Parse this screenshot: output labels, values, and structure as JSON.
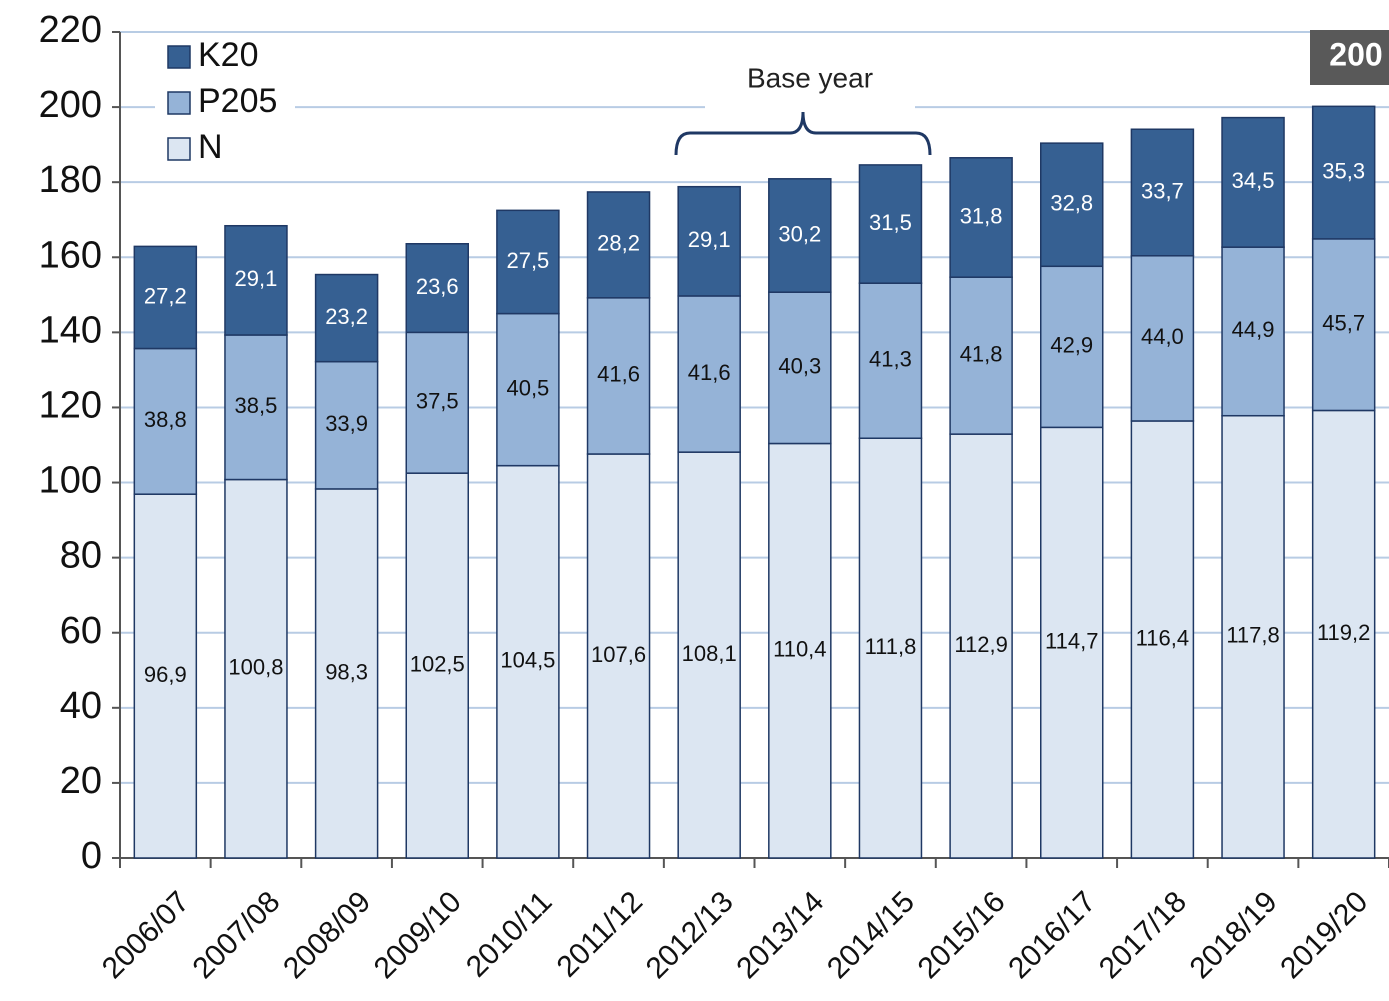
{
  "chart_data": {
    "type": "stacked_bar",
    "categories": [
      "2006/07",
      "2007/08",
      "2008/09",
      "2009/10",
      "2010/11",
      "2011/12",
      "2012/13",
      "2013/14",
      "2014/15",
      "2015/16",
      "2016/17",
      "2017/18",
      "2018/19",
      "2019/20"
    ],
    "series": [
      {
        "name": "N",
        "color": "#dce6f2",
        "values": [
          96.9,
          100.8,
          98.3,
          102.5,
          104.5,
          107.6,
          108.1,
          110.4,
          111.8,
          112.9,
          114.7,
          116.4,
          117.8,
          119.2
        ],
        "value_labels": [
          "96,9",
          "100,8",
          "98,3",
          "102,5",
          "104,5",
          "107,6",
          "108,1",
          "110,4",
          "111,8",
          "112,9",
          "114,7",
          "116,4",
          "117,8",
          "119,2"
        ]
      },
      {
        "name": "P205",
        "color": "#95b3d7",
        "values": [
          38.8,
          38.5,
          33.9,
          37.5,
          40.5,
          41.6,
          41.6,
          40.3,
          41.3,
          41.8,
          42.9,
          44.0,
          44.9,
          45.7
        ],
        "value_labels": [
          "38,8",
          "38,5",
          "33,9",
          "37,5",
          "40,5",
          "41,6",
          "41,6",
          "40,3",
          "41,3",
          "41,8",
          "42,9",
          "44,0",
          "44,9",
          "45,7"
        ]
      },
      {
        "name": "K20",
        "color": "#366092",
        "values": [
          27.2,
          29.1,
          23.2,
          23.6,
          27.5,
          28.2,
          29.1,
          30.2,
          31.5,
          31.8,
          32.8,
          33.7,
          34.5,
          35.3
        ],
        "value_labels": [
          "27,2",
          "29,1",
          "23,2",
          "23,6",
          "27,5",
          "28,2",
          "29,1",
          "30,2",
          "31,5",
          "31,8",
          "32,8",
          "33,7",
          "34,5",
          "35,3"
        ]
      }
    ],
    "ylim": [
      0,
      220
    ],
    "yticks": [
      0,
      20,
      40,
      60,
      80,
      100,
      120,
      140,
      160,
      180,
      200,
      220
    ],
    "grid": true,
    "legend": "upper left",
    "annotations": [
      {
        "text": "Base year"
      },
      {
        "text": "200"
      }
    ]
  }
}
